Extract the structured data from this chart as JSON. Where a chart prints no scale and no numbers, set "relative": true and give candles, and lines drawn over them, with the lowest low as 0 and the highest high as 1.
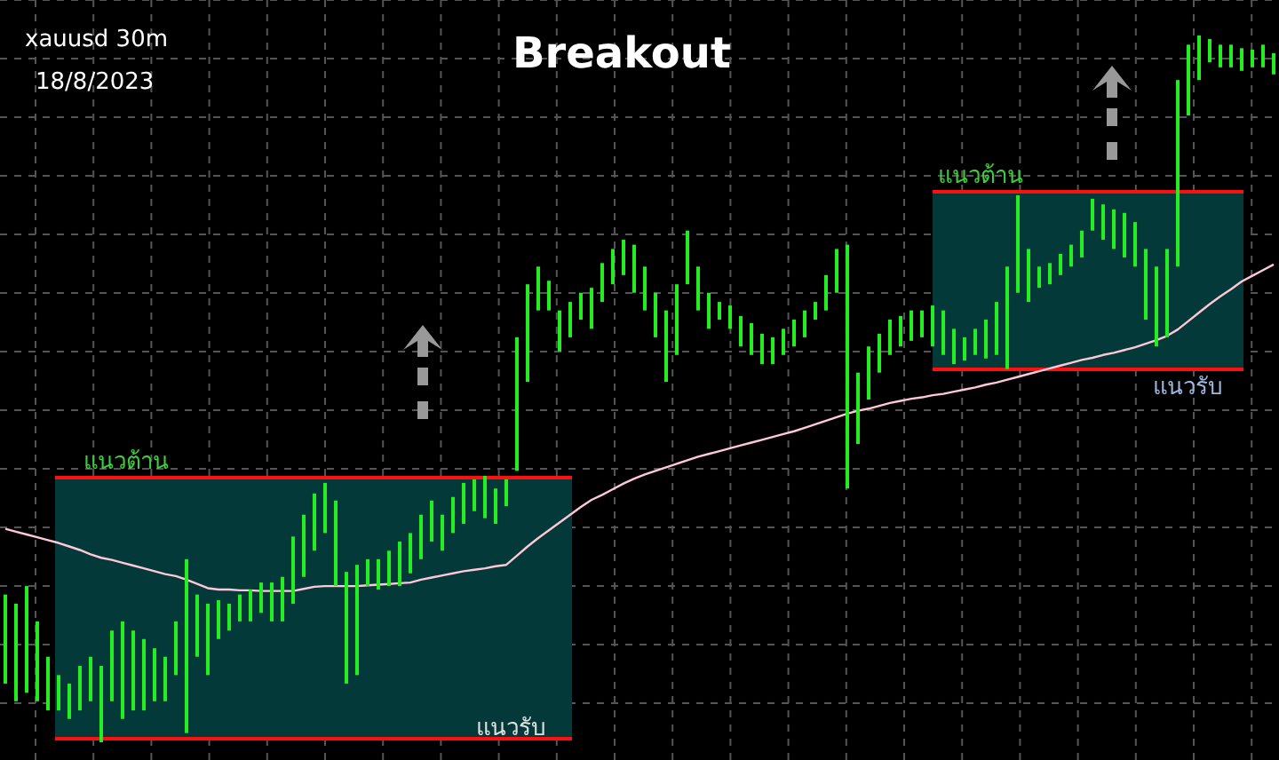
{
  "chart_data": {
    "type": "candlestick",
    "title": "Breakout",
    "relative": true,
    "color": "#22ee22",
    "grid": true,
    "annotations": [
      "xauusd 30m",
      "18/8/2023",
      "แนวต้าน",
      "แนวรับ",
      "แนวต้าน",
      "แนวรับ"
    ],
    "categories": [
      null,
      null,
      null,
      null,
      null,
      null,
      null,
      null,
      null,
      null,
      null,
      null,
      null,
      null,
      null,
      null,
      null,
      null,
      null,
      null,
      null,
      null,
      null,
      null,
      null,
      null,
      null,
      null,
      null,
      null,
      null,
      null,
      null,
      null,
      null,
      null,
      null,
      null,
      null,
      null,
      null,
      null,
      null,
      null,
      null,
      null,
      null,
      null,
      null,
      null,
      null,
      null,
      null,
      null,
      null,
      null,
      null,
      null,
      null,
      null,
      null,
      null,
      null,
      null,
      null,
      null,
      null,
      null,
      null,
      null,
      null,
      null,
      null,
      null,
      null,
      null,
      null,
      null,
      null,
      null,
      null,
      null,
      null,
      null,
      null,
      null,
      null,
      null,
      null,
      null,
      null,
      null,
      null,
      null,
      null,
      null,
      null,
      null,
      null,
      null,
      null,
      null,
      null,
      null,
      null,
      null,
      null,
      null,
      null,
      null,
      null,
      null,
      null,
      null,
      null,
      null,
      null,
      null,
      null,
      null
    ],
    "ohlc": [
      [
        0.083,
        0.209,
        0.083,
        0.209
      ],
      [
        0.058,
        0.196,
        0.058,
        0.196
      ],
      [
        0.07,
        0.221,
        0.07,
        0.221
      ],
      [
        0.058,
        0.171,
        0.058,
        0.171
      ],
      [
        0.045,
        0.121,
        0.045,
        0.121
      ],
      [
        0.045,
        0.095,
        0.045,
        0.095
      ],
      [
        0.033,
        0.083,
        0.033,
        0.083
      ],
      [
        0.045,
        0.108,
        0.045,
        0.108
      ],
      [
        0.058,
        0.121,
        0.058,
        0.121
      ],
      [
        0,
        0.108,
        0,
        0.108
      ],
      [
        0.058,
        0.158,
        0.058,
        0.158
      ],
      [
        0.033,
        0.171,
        0.033,
        0.171
      ],
      [
        0.045,
        0.158,
        0.045,
        0.158
      ],
      [
        0.045,
        0.146,
        0.045,
        0.146
      ],
      [
        0.058,
        0.133,
        0.058,
        0.133
      ],
      [
        0.058,
        0.121,
        0.058,
        0.121
      ],
      [
        0.095,
        0.171,
        0.095,
        0.171
      ],
      [
        0.013,
        0.259,
        0.013,
        0.259
      ],
      [
        0.121,
        0.209,
        0.121,
        0.209
      ],
      [
        0.095,
        0.196,
        0.095,
        0.196
      ],
      [
        0.146,
        0.201,
        0.146,
        0.201
      ],
      [
        0.158,
        0.196,
        0.158,
        0.196
      ],
      [
        0.171,
        0.209,
        0.171,
        0.209
      ],
      [
        0.171,
        0.216,
        0.171,
        0.216
      ],
      [
        0.183,
        0.226,
        0.183,
        0.226
      ],
      [
        0.171,
        0.226,
        0.171,
        0.226
      ],
      [
        0.171,
        0.234,
        0.171,
        0.234
      ],
      [
        0.196,
        0.291,
        0.196,
        0.291
      ],
      [
        0.234,
        0.322,
        0.234,
        0.322
      ],
      [
        0.271,
        0.352,
        0.271,
        0.352
      ],
      [
        0.296,
        0.367,
        0.296,
        0.367
      ],
      [
        0.221,
        0.342,
        0.221,
        0.342
      ],
      [
        0.083,
        0.241,
        0.083,
        0.241
      ],
      [
        0.095,
        0.251,
        0.095,
        0.251
      ],
      [
        0.221,
        0.259,
        0.221,
        0.259
      ],
      [
        0.216,
        0.259,
        0.216,
        0.259
      ],
      [
        0.221,
        0.271,
        0.221,
        0.271
      ],
      [
        0.221,
        0.284,
        0.221,
        0.284
      ],
      [
        0.239,
        0.296,
        0.239,
        0.296
      ],
      [
        0.259,
        0.322,
        0.259,
        0.322
      ],
      [
        0.284,
        0.342,
        0.284,
        0.342
      ],
      [
        0.271,
        0.322,
        0.271,
        0.322
      ],
      [
        0.296,
        0.347,
        0.296,
        0.347
      ],
      [
        0.309,
        0.367,
        0.309,
        0.367
      ],
      [
        0.327,
        0.372,
        0.327,
        0.372
      ],
      [
        0.317,
        0.377,
        0.317,
        0.377
      ],
      [
        0.309,
        0.359,
        0.309,
        0.359
      ],
      [
        0.334,
        0.372,
        0.334,
        0.372
      ],
      [
        0.384,
        0.573,
        0.384,
        0.573
      ],
      [
        0.51,
        0.648,
        0.51,
        0.648
      ],
      [
        0.611,
        0.673,
        0.611,
        0.673
      ],
      [
        0.611,
        0.653,
        0.611,
        0.653
      ],
      [
        0.553,
        0.611,
        0.553,
        0.611
      ],
      [
        0.573,
        0.623,
        0.573,
        0.623
      ],
      [
        0.598,
        0.636,
        0.598,
        0.636
      ],
      [
        0.585,
        0.643,
        0.585,
        0.643
      ],
      [
        0.623,
        0.678,
        0.623,
        0.678
      ],
      [
        0.648,
        0.698,
        0.648,
        0.698
      ],
      [
        0.661,
        0.711,
        0.661,
        0.711
      ],
      [
        0.636,
        0.704,
        0.636,
        0.704
      ],
      [
        0.611,
        0.673,
        0.611,
        0.673
      ],
      [
        0.573,
        0.636,
        0.573,
        0.636
      ],
      [
        0.51,
        0.611,
        0.51,
        0.611
      ],
      [
        0.548,
        0.648,
        0.548,
        0.648
      ],
      [
        0.648,
        0.724,
        0.648,
        0.724
      ],
      [
        0.611,
        0.673,
        0.611,
        0.673
      ],
      [
        0.585,
        0.636,
        0.585,
        0.636
      ],
      [
        0.598,
        0.623,
        0.598,
        0.623
      ],
      [
        0.585,
        0.618,
        0.585,
        0.618
      ],
      [
        0.56,
        0.603,
        0.56,
        0.603
      ],
      [
        0.548,
        0.593,
        0.548,
        0.593
      ],
      [
        0.535,
        0.578,
        0.535,
        0.578
      ],
      [
        0.535,
        0.573,
        0.535,
        0.573
      ],
      [
        0.548,
        0.585,
        0.548,
        0.585
      ],
      [
        0.56,
        0.598,
        0.56,
        0.598
      ],
      [
        0.573,
        0.611,
        0.573,
        0.611
      ],
      [
        0.598,
        0.623,
        0.598,
        0.623
      ],
      [
        0.611,
        0.661,
        0.611,
        0.661
      ],
      [
        0.636,
        0.698,
        0.636,
        0.698
      ],
      [
        0.359,
        0.704,
        0.359,
        0.704
      ],
      [
        0.422,
        0.523,
        0.422,
        0.523
      ],
      [
        0.485,
        0.56,
        0.485,
        0.56
      ],
      [
        0.523,
        0.578,
        0.523,
        0.578
      ],
      [
        0.548,
        0.598,
        0.548,
        0.598
      ],
      [
        0.56,
        0.603,
        0.56,
        0.603
      ],
      [
        0.568,
        0.611,
        0.568,
        0.611
      ],
      [
        0.573,
        0.611,
        0.573,
        0.611
      ],
      [
        0.56,
        0.618,
        0.56,
        0.618
      ],
      [
        0.548,
        0.611,
        0.548,
        0.611
      ],
      [
        0.535,
        0.585,
        0.535,
        0.585
      ],
      [
        0.54,
        0.573,
        0.54,
        0.573
      ],
      [
        0.548,
        0.585,
        0.548,
        0.585
      ],
      [
        0.543,
        0.598,
        0.543,
        0.598
      ],
      [
        0.548,
        0.623,
        0.548,
        0.623
      ],
      [
        0.528,
        0.673,
        0.528,
        0.673
      ],
      [
        0.636,
        0.774,
        0.636,
        0.774
      ],
      [
        0.623,
        0.698,
        0.623,
        0.698
      ],
      [
        0.643,
        0.673,
        0.643,
        0.673
      ],
      [
        0.648,
        0.678,
        0.648,
        0.678
      ],
      [
        0.661,
        0.691,
        0.661,
        0.691
      ],
      [
        0.673,
        0.704,
        0.673,
        0.704
      ],
      [
        0.686,
        0.724,
        0.686,
        0.724
      ],
      [
        0.724,
        0.769,
        0.724,
        0.769
      ],
      [
        0.711,
        0.761,
        0.711,
        0.761
      ],
      [
        0.698,
        0.754,
        0.698,
        0.754
      ],
      [
        0.686,
        0.749,
        0.686,
        0.749
      ],
      [
        0.673,
        0.736,
        0.673,
        0.736
      ],
      [
        0.598,
        0.698,
        0.598,
        0.698
      ],
      [
        0.56,
        0.673,
        0.56,
        0.673
      ],
      [
        0.573,
        0.698,
        0.573,
        0.698
      ],
      [
        0.673,
        0.937,
        0.673,
        0.937
      ],
      [
        0.887,
        0.987,
        0.887,
        0.987
      ],
      [
        0.937,
        1,
        0.937,
        1
      ],
      [
        0.962,
        0.995,
        0.962,
        0.995
      ],
      [
        0.955,
        0.987,
        0.955,
        0.987
      ],
      [
        0.955,
        0.987,
        0.955,
        0.987
      ],
      [
        0.95,
        0.982,
        0.95,
        0.982
      ],
      [
        0.955,
        0.98,
        0.955,
        0.98
      ],
      [
        0.955,
        0.987,
        0.955,
        0.987
      ],
      [
        0.945,
        0.975,
        0.945,
        0.975
      ]
    ],
    "series": [
      {
        "type": "line",
        "color": "#ffc8d8",
        "values": [
          0.302,
          0.298,
          0.294,
          0.29,
          0.286,
          0.282,
          0.277,
          0.272,
          0.266,
          0.261,
          0.258,
          0.254,
          0.25,
          0.246,
          0.242,
          0.238,
          0.235,
          0.23,
          0.224,
          0.218,
          0.216,
          0.216,
          0.215,
          0.215,
          0.214,
          0.214,
          0.214,
          0.214,
          0.217,
          0.22,
          0.221,
          0.221,
          0.221,
          0.221,
          0.222,
          0.223,
          0.224,
          0.225,
          0.226,
          0.23,
          0.233,
          0.236,
          0.239,
          0.242,
          0.244,
          0.246,
          0.249,
          0.251,
          0.264,
          0.277,
          0.289,
          0.3,
          0.311,
          0.322,
          0.333,
          0.343,
          0.35,
          0.358,
          0.366,
          0.373,
          0.379,
          0.384,
          0.389,
          0.394,
          0.399,
          0.404,
          0.408,
          0.412,
          0.416,
          0.42,
          0.424,
          0.428,
          0.432,
          0.436,
          0.44,
          0.445,
          0.45,
          0.455,
          0.46,
          0.465,
          0.469,
          0.472,
          0.476,
          0.48,
          0.483,
          0.486,
          0.488,
          0.491,
          0.493,
          0.496,
          0.499,
          0.502,
          0.506,
          0.509,
          0.513,
          0.517,
          0.521,
          0.525,
          0.529,
          0.533,
          0.537,
          0.541,
          0.544,
          0.548,
          0.551,
          0.555,
          0.559,
          0.564,
          0.569,
          0.575,
          0.584,
          0.596,
          0.608,
          0.62,
          0.631,
          0.641,
          0.652,
          0.66,
          0.668,
          0.676
        ]
      }
    ]
  }
}
